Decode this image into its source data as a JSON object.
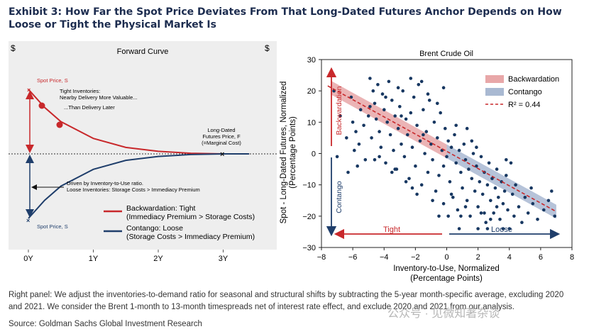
{
  "title": "Exhibit 3: How Far the Spot Price Deviates From That Long-Dated Futures Anchor Depends on How Loose or Tight the Physical Market Is",
  "footnote": "Right panel: We adjust the inventories-to-demand ratio for seasonal and structural shifts by subtracting the 5-year month-specific average, excluding 2020 and 2021. We consider the Brent 1-month to 13-month timespreads net of interest rate effect, and exclude 2020 and 2021 from our analysis.",
  "source": "Source: Goldman Sachs Global Investment Research",
  "watermark": "公众号 · 见微知著杂谈",
  "colors": {
    "red": "#c8282b",
    "navy": "#1f3e6b",
    "dots": "#173761",
    "band_red": "#e8a7a8",
    "band_blue": "#a9b9d2",
    "title": "#1c2c4f"
  },
  "chart_data": [
    {
      "type": "line",
      "title": "Forward Curve",
      "ylabel_left": "$",
      "ylabel_right": "$",
      "xticks": [
        "0Y",
        "1Y",
        "2Y",
        "3Y"
      ],
      "series": [
        {
          "name": "Backwardation: Tight (Immediacy Premium > Storage Costs)",
          "x_years": [
            0,
            0.25,
            0.5,
            1,
            1.5,
            2,
            2.5,
            3,
            3.4
          ],
          "y_rel": [
            1.0,
            0.72,
            0.5,
            0.24,
            0.1,
            0.04,
            0.01,
            0.0,
            0.0
          ]
        },
        {
          "name": "Contango: Loose (Storage Costs > Immediacy Premium)",
          "x_years": [
            0,
            0.25,
            0.5,
            1,
            1.5,
            2,
            2.5,
            3,
            3.4
          ],
          "y_rel": [
            -1.0,
            -0.72,
            -0.5,
            -0.24,
            -0.1,
            -0.04,
            -0.01,
            0.0,
            0.0
          ]
        }
      ],
      "annotations": {
        "spot_top": "Spot Price, S",
        "tight_1": "Tight Inventories:",
        "tight_2": "Nearby Delivery More Valuable...",
        "tight_3": "...Than Delivery Later",
        "ld_1": "Long-Dated",
        "ld_2": "Futures Price, F",
        "ld_3": "(=Marginal Cost)",
        "driven_1": "Driven by Inventory-to-Use ratio.",
        "driven_2": "Loose Inventories: Storage Costs > Immediacy Premium",
        "spot_bottom": "Spot Price, S"
      },
      "legend": [
        {
          "line1": "Backwardation: Tight",
          "line2": "(Immediacy Premium > Storage Costs)"
        },
        {
          "line1": "Contango: Loose",
          "line2": "(Storage Costs > Immediacy Premium)"
        }
      ]
    },
    {
      "type": "scatter",
      "title": "Brent Crude Oil",
      "xlabel": "Inventory-to-Use, Normalized (Percentage Points)",
      "ylabel": "Spot - Long-Dated Futures, Normalized (Percentage Points)",
      "xlim": [
        -8,
        8
      ],
      "ylim": [
        -30,
        30
      ],
      "xticks": [
        -8,
        -6,
        -4,
        -2,
        0,
        2,
        4,
        6,
        8
      ],
      "yticks": [
        30,
        20,
        10,
        0,
        -10,
        -20,
        -30
      ],
      "legend_position": "top-right",
      "legend": [
        "Backwardation",
        "Contango",
        "R² = 0.44"
      ],
      "side_labels": {
        "up": "Backwardation",
        "down": "Contango",
        "left": "Tight",
        "right": "Loose"
      },
      "fit": {
        "slope": -2.75,
        "intercept": 0.7,
        "band_halfwidth": 2.2
      },
      "points": [
        [
          -7.2,
          20
        ],
        [
          -6.4,
          5
        ],
        [
          -6.3,
          -6
        ],
        [
          -6.1,
          18
        ],
        [
          -5.8,
          7
        ],
        [
          -5.6,
          3
        ],
        [
          -5.5,
          14
        ],
        [
          -5.3,
          9
        ],
        [
          -5.2,
          -2
        ],
        [
          -5.0,
          12
        ],
        [
          -4.9,
          24
        ],
        [
          -4.8,
          5
        ],
        [
          -4.7,
          20
        ],
        [
          -4.6,
          16
        ],
        [
          -4.5,
          11
        ],
        [
          -4.4,
          22
        ],
        [
          -4.3,
          7
        ],
        [
          -4.2,
          2
        ],
        [
          -4.1,
          19
        ],
        [
          -4.0,
          14
        ],
        [
          -3.9,
          -3
        ],
        [
          -3.8,
          10
        ],
        [
          -3.7,
          23
        ],
        [
          -3.6,
          6
        ],
        [
          -3.5,
          17
        ],
        [
          -3.4,
          1
        ],
        [
          -3.3,
          12
        ],
        [
          -3.2,
          -5
        ],
        [
          -3.1,
          8
        ],
        [
          -3.0,
          15
        ],
        [
          -2.9,
          3
        ],
        [
          -2.8,
          20
        ],
        [
          -2.7,
          -1
        ],
        [
          -2.6,
          11
        ],
        [
          -2.5,
          6
        ],
        [
          -2.4,
          -8
        ],
        [
          -2.3,
          13
        ],
        [
          -2.2,
          2
        ],
        [
          -2.1,
          18
        ],
        [
          -2.0,
          -4
        ],
        [
          -1.9,
          9
        ],
        [
          -1.8,
          22
        ],
        [
          -1.7,
          4
        ],
        [
          -1.6,
          -10
        ],
        [
          -1.5,
          14
        ],
        [
          -1.4,
          0
        ],
        [
          -1.3,
          7
        ],
        [
          -1.2,
          -6
        ],
        [
          -1.1,
          17
        ],
        [
          -1.0,
          3
        ],
        [
          -0.9,
          -2
        ],
        [
          -0.8,
          10
        ],
        [
          -0.7,
          -12
        ],
        [
          -0.6,
          5
        ],
        [
          -0.5,
          -7
        ],
        [
          -0.4,
          13
        ],
        [
          -0.3,
          1
        ],
        [
          -0.2,
          -4
        ],
        [
          -0.1,
          8
        ],
        [
          0.0,
          -1
        ],
        [
          0.1,
          4
        ],
        [
          0.2,
          -9
        ],
        [
          0.3,
          2
        ],
        [
          0.4,
          -14
        ],
        [
          0.5,
          6
        ],
        [
          0.6,
          -3
        ],
        [
          0.7,
          -18
        ],
        [
          0.8,
          1
        ],
        [
          0.9,
          -6
        ],
        [
          1.0,
          -11
        ],
        [
          1.1,
          3
        ],
        [
          1.2,
          -2
        ],
        [
          1.3,
          -15
        ],
        [
          1.4,
          -5
        ],
        [
          1.5,
          -20
        ],
        [
          1.6,
          -8
        ],
        [
          1.7,
          0
        ],
        [
          1.8,
          -12
        ],
        [
          1.9,
          -4
        ],
        [
          2.0,
          -17
        ],
        [
          2.1,
          -9
        ],
        [
          2.2,
          -1
        ],
        [
          2.3,
          -13
        ],
        [
          2.4,
          -6
        ],
        [
          2.5,
          -22
        ],
        [
          2.6,
          -10
        ],
        [
          2.7,
          -3
        ],
        [
          2.8,
          -15
        ],
        [
          2.9,
          -8
        ],
        [
          3.0,
          -19
        ],
        [
          3.1,
          -11
        ],
        [
          3.2,
          -5
        ],
        [
          3.3,
          -14
        ],
        [
          3.4,
          -21
        ],
        [
          3.5,
          -9
        ],
        [
          3.6,
          -16
        ],
        [
          3.7,
          -12
        ],
        [
          3.8,
          -7
        ],
        [
          3.9,
          -18
        ],
        [
          4.0,
          -24
        ],
        [
          4.2,
          -13
        ],
        [
          4.3,
          -20
        ],
        [
          4.4,
          -10
        ],
        [
          4.6,
          -17
        ],
        [
          4.8,
          -22
        ],
        [
          5.0,
          -14
        ],
        [
          5.2,
          -19
        ],
        [
          5.5,
          -16
        ],
        [
          5.8,
          -21
        ],
        [
          6.2,
          -18
        ],
        [
          6.7,
          -12
        ],
        [
          6.9,
          -20
        ],
        [
          -6.8,
          12
        ],
        [
          -6.0,
          10
        ],
        [
          -5.7,
          -4
        ],
        [
          -4.9,
          15
        ],
        [
          -4.3,
          -1
        ],
        [
          -3.9,
          18
        ],
        [
          -3.5,
          -6
        ],
        [
          -3.1,
          21
        ],
        [
          -2.9,
          12
        ],
        [
          -2.6,
          -9
        ],
        [
          -2.2,
          -11
        ],
        [
          -1.9,
          -13
        ],
        [
          -1.5,
          6
        ],
        [
          -1.2,
          19
        ],
        [
          -0.9,
          -15
        ],
        [
          -0.6,
          16
        ],
        [
          -0.2,
          -16
        ],
        [
          0.3,
          -13
        ],
        [
          0.6,
          9
        ],
        [
          0.9,
          -20
        ],
        [
          1.2,
          -17
        ],
        [
          1.6,
          4
        ],
        [
          2.0,
          -24
        ],
        [
          2.4,
          -19
        ],
        [
          2.8,
          -21
        ],
        [
          3.2,
          -17
        ],
        [
          3.6,
          -24
        ],
        [
          -0.2,
          21
        ],
        [
          0.1,
          -20
        ],
        [
          1.3,
          8
        ],
        [
          -1.6,
          23
        ],
        [
          -3.3,
          -5
        ],
        [
          -5.9,
          1
        ],
        [
          -4.6,
          -2
        ],
        [
          2.6,
          -24
        ],
        [
          4.1,
          -3
        ],
        [
          5.4,
          -11
        ],
        [
          6.5,
          -15
        ],
        [
          -7.0,
          -1
        ],
        [
          0.8,
          -24
        ],
        [
          -0.5,
          -20
        ],
        [
          1.9,
          2
        ],
        [
          3.8,
          -2
        ],
        [
          -2.3,
          24
        ],
        [
          2.2,
          -19
        ]
      ]
    }
  ]
}
